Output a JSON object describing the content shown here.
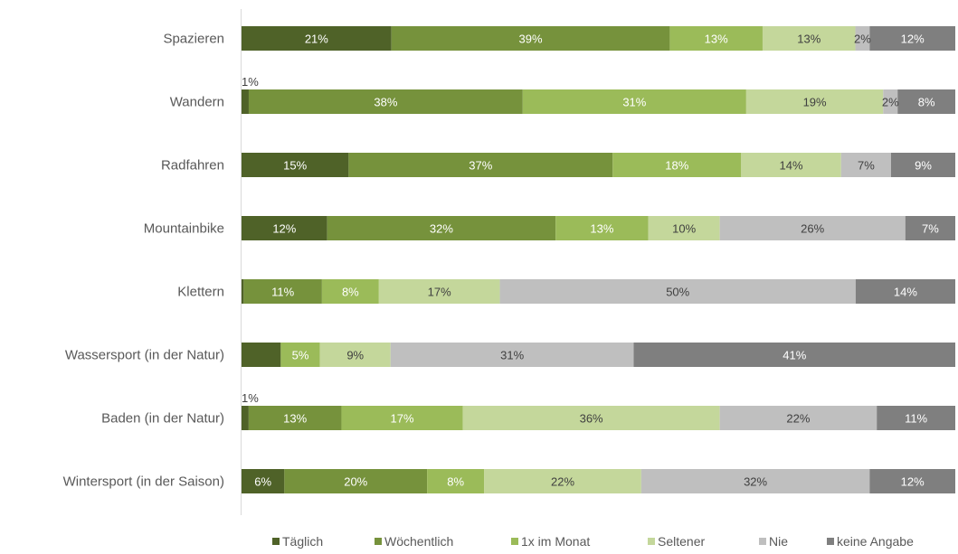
{
  "chart_data": {
    "type": "bar",
    "orientation": "horizontal",
    "stacked": true,
    "categories": [
      "Spazieren",
      "Wandern",
      "Radfahren",
      "Mountainbike",
      "Klettern",
      "Wassersport (in der Natur)",
      "Baden (in der Natur)",
      "Wintersport (in der Saison)"
    ],
    "series": [
      {
        "name": "Täglich",
        "color": "#4f6228",
        "values": [
          21,
          1,
          15,
          12,
          0.3,
          5,
          1,
          6
        ],
        "labels": [
          "21%",
          "1%",
          "15%",
          "12%",
          "",
          "",
          "1%",
          "6%"
        ]
      },
      {
        "name": "Wöchentlich",
        "color": "#76923c",
        "values": [
          39,
          38,
          37,
          32,
          11,
          0,
          13,
          20
        ],
        "labels": [
          "39%",
          "38%",
          "37%",
          "32%",
          "11%",
          "",
          "13%",
          "20%"
        ]
      },
      {
        "name": "1x im Monat",
        "color": "#9bbb59",
        "values": [
          13,
          31,
          18,
          13,
          8,
          5,
          17,
          8
        ],
        "labels": [
          "13%",
          "31%",
          "18%",
          "13%",
          "8%",
          "5%",
          "17%",
          "8%"
        ]
      },
      {
        "name": "Seltener",
        "color": "#c4d79b",
        "values": [
          13,
          19,
          14,
          10,
          17,
          9,
          36,
          22
        ],
        "labels": [
          "13%",
          "19%",
          "14%",
          "10%",
          "17%",
          "9%",
          "36%",
          "22%"
        ]
      },
      {
        "name": "Nie",
        "color": "#bfbfbf",
        "values": [
          2,
          2,
          7,
          26,
          50,
          31,
          22,
          32
        ],
        "labels": [
          "2%",
          "2%",
          "7%",
          "26%",
          "50%",
          "31%",
          "22%",
          "32%"
        ]
      },
      {
        "name": "keine Angabe",
        "color": "#7f7f7f",
        "values": [
          12,
          8,
          9,
          7,
          14,
          41,
          11,
          12
        ],
        "labels": [
          "12%",
          "8%",
          "9%",
          "7%",
          "14%",
          "41%",
          "11%",
          "12%"
        ]
      }
    ],
    "extra_row_labels": [
      {
        "value": 14,
        "text": "14%"
      }
    ],
    "title": "",
    "xlabel": "",
    "ylabel": "",
    "legend": "bottom",
    "grid": false
  }
}
